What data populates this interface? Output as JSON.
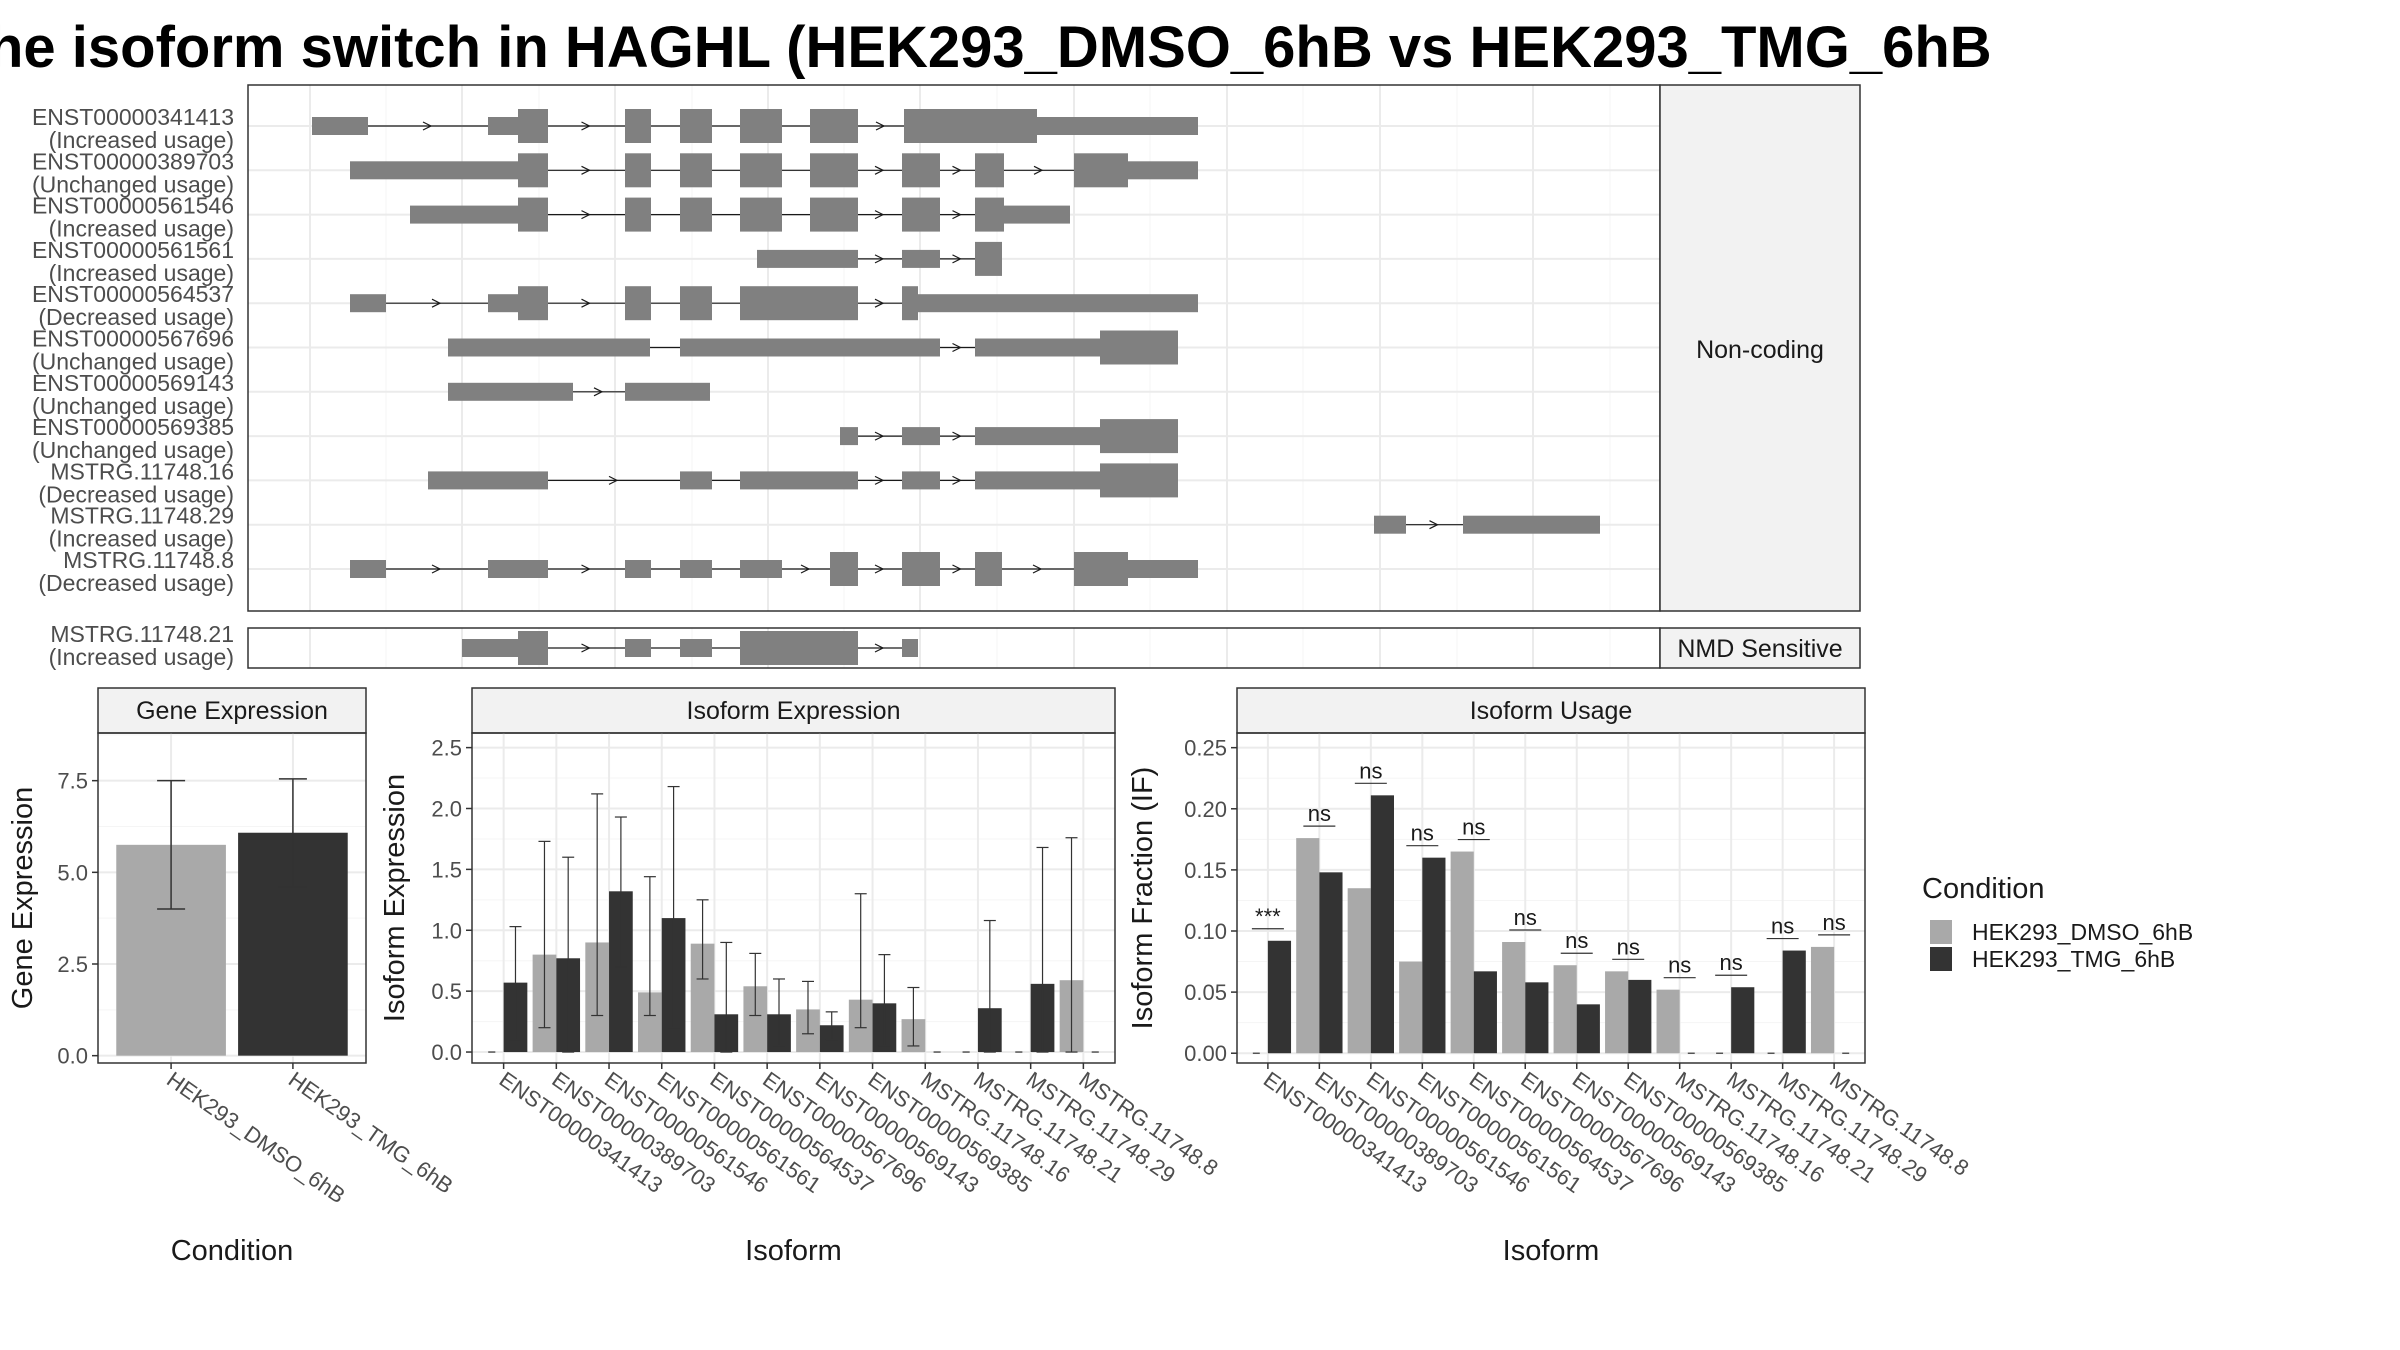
{
  "title": "he isoform switch in HAGHL (HEK293_DMSO_6hB vs HEK293_TMG_6hB",
  "colors": {
    "dmso": "#a9a9a9",
    "tmg": "#333333",
    "exon": "#808080",
    "grid": "#ebebeb",
    "strip_bg": "#f2f2f2",
    "panel_border": "#7f7f7f"
  },
  "structure_panel": {
    "facets": [
      {
        "label": "Non-coding",
        "isoforms": [
          {
            "id": "ENST00000341413",
            "usage": "(Increased usage)"
          },
          {
            "id": "ENST00000389703",
            "usage": "(Unchanged usage)"
          },
          {
            "id": "ENST00000561546",
            "usage": "(Increased usage)"
          },
          {
            "id": "ENST00000561561",
            "usage": "(Increased usage)"
          },
          {
            "id": "ENST00000564537",
            "usage": "(Decreased usage)"
          },
          {
            "id": "ENST00000567696",
            "usage": "(Unchanged usage)"
          },
          {
            "id": "ENST00000569143",
            "usage": "(Unchanged usage)"
          },
          {
            "id": "ENST00000569385",
            "usage": "(Unchanged usage)"
          },
          {
            "id": "MSTRG.11748.16",
            "usage": "(Decreased usage)"
          },
          {
            "id": "MSTRG.11748.29",
            "usage": "(Increased usage)"
          },
          {
            "id": "MSTRG.11748.8",
            "usage": "(Decreased usage)"
          }
        ]
      },
      {
        "label": "NMD Sensitive",
        "isoforms": [
          {
            "id": "MSTRG.11748.21",
            "usage": "(Increased usage)"
          }
        ]
      }
    ]
  },
  "chart_data": [
    {
      "type": "bar",
      "title": "Gene Expression",
      "xlabel": "Condition",
      "ylabel": "Gene Expression",
      "categories": [
        "HEK293_DMSO_6hB",
        "HEK293_TMG_6hB"
      ],
      "values": [
        5.75,
        6.08
      ],
      "error_low": [
        4.0,
        4.6
      ],
      "error_high": [
        7.5,
        7.55
      ],
      "ylim": [
        -0.2,
        8.8
      ],
      "yticks": [
        "0.0",
        "2.5",
        "5.0",
        "7.5"
      ],
      "grid": true
    },
    {
      "type": "bar",
      "title": "Isoform Expression",
      "xlabel": "Isoform",
      "ylabel": "Isoform Expression",
      "categories": [
        "ENST00000341413",
        "ENST00000389703",
        "ENST00000561546",
        "ENST00000561561",
        "ENST00000564537",
        "ENST00000567696",
        "ENST00000569143",
        "ENST00000569385",
        "MSTRG.11748.16",
        "MSTRG.11748.21",
        "MSTRG.11748.29",
        "MSTRG.11748.8"
      ],
      "series": [
        {
          "name": "HEK293_DMSO_6hB",
          "values": [
            0.0,
            0.8,
            0.9,
            0.49,
            0.89,
            0.54,
            0.35,
            0.43,
            0.27,
            0.0,
            0.0,
            0.59
          ],
          "error_low": [
            0.0,
            0.2,
            0.3,
            0.3,
            0.6,
            0.3,
            0.15,
            0.2,
            0.05,
            0.0,
            0.0,
            0.0
          ],
          "error_high": [
            0.0,
            1.73,
            2.12,
            1.44,
            1.25,
            0.81,
            0.58,
            1.3,
            0.53,
            0.0,
            0.0,
            1.76
          ]
        },
        {
          "name": "HEK293_TMG_6hB",
          "values": [
            0.57,
            0.77,
            1.32,
            1.1,
            0.31,
            0.31,
            0.22,
            0.4,
            0.0,
            0.36,
            0.56,
            0.0
          ],
          "error_low": [
            0.1,
            0.0,
            0.7,
            0.2,
            0.0,
            0.05,
            0.1,
            0.05,
            0.0,
            0.0,
            0.0,
            0.0
          ],
          "error_high": [
            1.03,
            1.6,
            1.93,
            2.18,
            0.9,
            0.6,
            0.33,
            0.8,
            0.0,
            1.08,
            1.68,
            0.0
          ]
        }
      ],
      "ylim": [
        -0.09,
        2.62
      ],
      "yticks": [
        "0.0",
        "0.5",
        "1.0",
        "1.5",
        "2.0",
        "2.5"
      ],
      "grid": true
    },
    {
      "type": "bar",
      "title": "Isoform Usage",
      "xlabel": "Isoform",
      "ylabel": "Isoform Fraction (IF)",
      "categories": [
        "ENST00000341413",
        "ENST00000389703",
        "ENST00000561546",
        "ENST00000561561",
        "ENST00000564537",
        "ENST00000567696",
        "ENST00000569143",
        "ENST00000569385",
        "MSTRG.11748.16",
        "MSTRG.11748.21",
        "MSTRG.11748.29",
        "MSTRG.11748.8"
      ],
      "series": [
        {
          "name": "HEK293_DMSO_6hB",
          "values": [
            0.0,
            0.176,
            0.135,
            0.075,
            0.165,
            0.091,
            0.072,
            0.067,
            0.052,
            0.0,
            0.0,
            0.087
          ]
        },
        {
          "name": "HEK293_TMG_6hB",
          "values": [
            0.092,
            0.148,
            0.211,
            0.16,
            0.067,
            0.058,
            0.04,
            0.06,
            0.0,
            0.054,
            0.084,
            0.0
          ]
        }
      ],
      "significance": [
        "***",
        "ns",
        "ns",
        "ns",
        "ns",
        "ns",
        "ns",
        "ns",
        "ns",
        "ns",
        "ns",
        "ns"
      ],
      "ylim": [
        -0.008,
        0.262
      ],
      "yticks": [
        "0.00",
        "0.05",
        "0.10",
        "0.15",
        "0.20",
        "0.25"
      ],
      "grid": true
    }
  ],
  "legend": {
    "title": "Condition",
    "entries": [
      "HEK293_DMSO_6hB",
      "HEK293_TMG_6hB"
    ]
  }
}
